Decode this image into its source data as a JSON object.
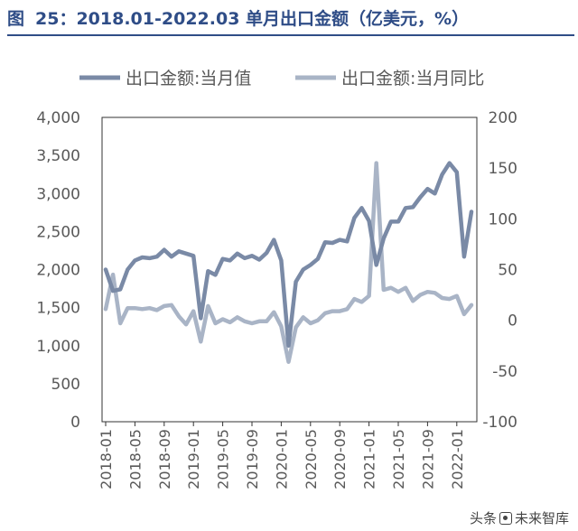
{
  "title": {
    "prefix": "图",
    "text": "25：2018.01-2022.03 单月出口金额（亿美元，%）"
  },
  "watermark": {
    "left": "头条",
    "right": "未来智库"
  },
  "colors": {
    "value_series": "#7a8aa6",
    "yoy_series": "#a9b4c6",
    "title": "#2f4d87",
    "axis": "#595959"
  },
  "chart_data": {
    "type": "line",
    "legend_position": "top",
    "grid": false,
    "x_tick_labels": [
      "2018-01",
      "2018-05",
      "2018-09",
      "2019-01",
      "2019-05",
      "2019-09",
      "2020-01",
      "2020-05",
      "2020-09",
      "2021-01",
      "2021-05",
      "2021-09",
      "2022-01"
    ],
    "y_left": {
      "range": [
        0,
        4000
      ],
      "ticks": [
        "0",
        "500",
        "1,000",
        "1,500",
        "2,000",
        "2,500",
        "3,000",
        "3,500",
        "4,000"
      ]
    },
    "y_right": {
      "range": [
        -100,
        200
      ],
      "ticks": [
        "-100",
        "-50",
        "0",
        "50",
        "100",
        "150",
        "200"
      ]
    },
    "x": [
      "2018-01",
      "2018-02",
      "2018-03",
      "2018-04",
      "2018-05",
      "2018-06",
      "2018-07",
      "2018-08",
      "2018-09",
      "2018-10",
      "2018-11",
      "2018-12",
      "2019-01",
      "2019-02",
      "2019-03",
      "2019-04",
      "2019-05",
      "2019-06",
      "2019-07",
      "2019-08",
      "2019-09",
      "2019-10",
      "2019-11",
      "2019-12",
      "2020-01",
      "2020-02",
      "2020-03",
      "2020-04",
      "2020-05",
      "2020-06",
      "2020-07",
      "2020-08",
      "2020-09",
      "2020-10",
      "2020-11",
      "2020-12",
      "2021-01",
      "2021-02",
      "2021-03",
      "2021-04",
      "2021-05",
      "2021-06",
      "2021-07",
      "2021-08",
      "2021-09",
      "2021-10",
      "2021-11",
      "2021-12",
      "2022-01",
      "2022-02",
      "2022-03"
    ],
    "series": [
      {
        "name": "出口金额:当月值",
        "axis": "left",
        "values": [
          2000,
          1720,
          1740,
          2000,
          2120,
          2160,
          2150,
          2170,
          2260,
          2170,
          2240,
          2210,
          2180,
          1360,
          1980,
          1930,
          2140,
          2120,
          2210,
          2150,
          2180,
          2130,
          2220,
          2390,
          2120,
          1000,
          1840,
          2000,
          2060,
          2140,
          2360,
          2350,
          2390,
          2370,
          2680,
          2810,
          2640,
          2060,
          2410,
          2630,
          2630,
          2810,
          2820,
          2950,
          3060,
          3000,
          3250,
          3400,
          3280,
          2170,
          2760
        ]
      },
      {
        "name": "出口金额:当月同比",
        "axis": "right",
        "values": [
          11,
          45,
          -3,
          12,
          12,
          11,
          12,
          10,
          14,
          15,
          4,
          -4,
          9,
          -21,
          14,
          -3,
          1,
          -2,
          3,
          -1,
          -3,
          -1,
          -1,
          8,
          -6,
          -41,
          -7,
          3,
          -3,
          0,
          7,
          9,
          9,
          11,
          21,
          18,
          24,
          155,
          30,
          32,
          28,
          32,
          19,
          25,
          28,
          27,
          22,
          21,
          24,
          6,
          15
        ]
      }
    ]
  }
}
